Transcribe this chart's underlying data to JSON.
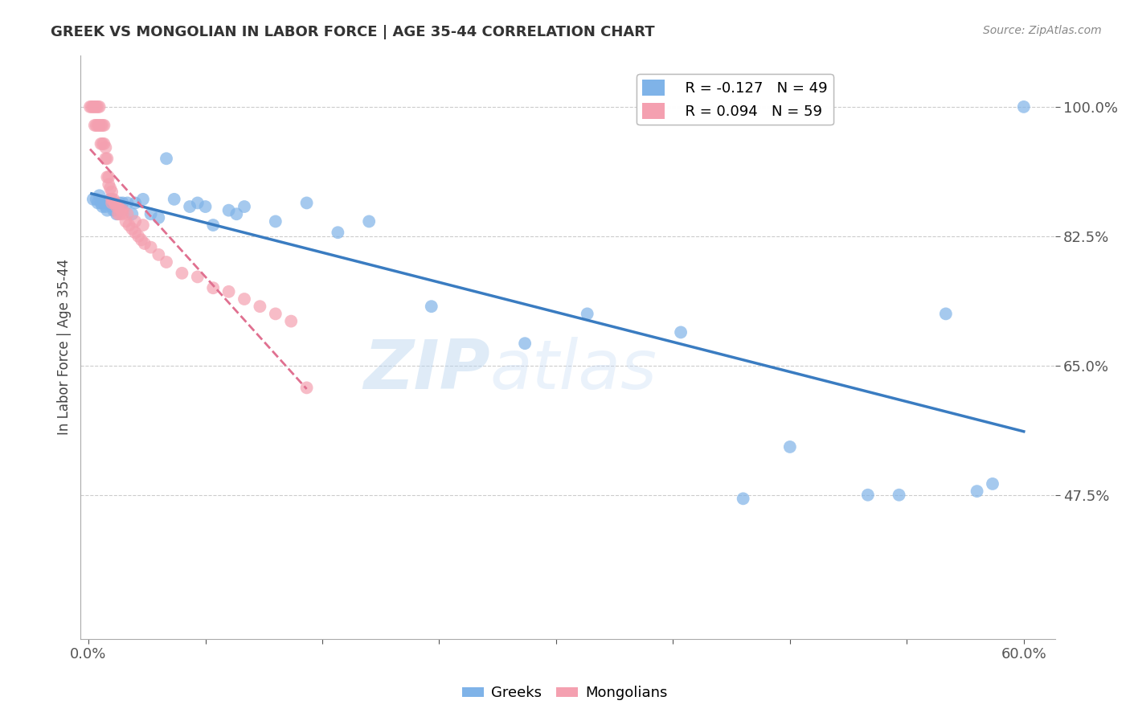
{
  "title": "GREEK VS MONGOLIAN IN LABOR FORCE | AGE 35-44 CORRELATION CHART",
  "source": "Source: ZipAtlas.com",
  "ylabel": "In Labor Force | Age 35-44",
  "xlim": [
    -0.005,
    0.62
  ],
  "ylim": [
    0.28,
    1.07
  ],
  "yticks": [
    0.475,
    0.65,
    0.825,
    1.0
  ],
  "ytick_labels": [
    "47.5%",
    "65.0%",
    "82.5%",
    "100.0%"
  ],
  "xticks": [
    0.0,
    0.075,
    0.15,
    0.225,
    0.3,
    0.375,
    0.45,
    0.525,
    0.6
  ],
  "xtick_labels_show": [
    true,
    false,
    false,
    false,
    false,
    false,
    false,
    false,
    true
  ],
  "xtick_labels": [
    "0.0%",
    "",
    "",
    "",
    "",
    "",
    "",
    "",
    "60.0%"
  ],
  "greek_color": "#7fb3e8",
  "mongolian_color": "#f4a0b0",
  "trendline_greek_color": "#3a7cc1",
  "trendline_mongolian_color": "#e07090",
  "watermark_zip": "ZIP",
  "watermark_atlas": "atlas",
  "legend_greek_R": "R = -0.127",
  "legend_greek_N": "N = 49",
  "legend_mongolian_R": "R = 0.094",
  "legend_mongolian_N": "N = 59",
  "greeks_x": [
    0.003,
    0.005,
    0.006,
    0.007,
    0.008,
    0.009,
    0.01,
    0.011,
    0.012,
    0.013,
    0.014,
    0.015,
    0.016,
    0.017,
    0.018,
    0.019,
    0.02,
    0.022,
    0.025,
    0.028,
    0.03,
    0.035,
    0.04,
    0.045,
    0.05,
    0.055,
    0.065,
    0.07,
    0.075,
    0.08,
    0.09,
    0.095,
    0.1,
    0.12,
    0.14,
    0.16,
    0.18,
    0.22,
    0.28,
    0.32,
    0.38,
    0.42,
    0.45,
    0.5,
    0.52,
    0.55,
    0.57,
    0.58,
    0.6
  ],
  "greeks_y": [
    0.875,
    0.875,
    0.87,
    0.88,
    0.87,
    0.865,
    0.87,
    0.865,
    0.86,
    0.87,
    0.875,
    0.865,
    0.86,
    0.86,
    0.855,
    0.86,
    0.87,
    0.87,
    0.87,
    0.855,
    0.87,
    0.875,
    0.855,
    0.85,
    0.93,
    0.875,
    0.865,
    0.87,
    0.865,
    0.84,
    0.86,
    0.855,
    0.865,
    0.845,
    0.87,
    0.83,
    0.845,
    0.73,
    0.68,
    0.72,
    0.695,
    0.47,
    0.54,
    0.475,
    0.475,
    0.72,
    0.48,
    0.49,
    1.0
  ],
  "mongolians_x": [
    0.001,
    0.002,
    0.003,
    0.004,
    0.004,
    0.005,
    0.005,
    0.006,
    0.006,
    0.007,
    0.007,
    0.008,
    0.008,
    0.009,
    0.009,
    0.01,
    0.01,
    0.011,
    0.011,
    0.012,
    0.012,
    0.013,
    0.013,
    0.014,
    0.015,
    0.015,
    0.016,
    0.017,
    0.018,
    0.019,
    0.02,
    0.021,
    0.022,
    0.024,
    0.026,
    0.028,
    0.03,
    0.032,
    0.034,
    0.036,
    0.04,
    0.045,
    0.05,
    0.06,
    0.07,
    0.08,
    0.09,
    0.1,
    0.11,
    0.12,
    0.13,
    0.015,
    0.017,
    0.019,
    0.022,
    0.025,
    0.03,
    0.035,
    0.14
  ],
  "mongolians_y": [
    1.0,
    1.0,
    1.0,
    1.0,
    0.975,
    1.0,
    0.975,
    1.0,
    0.975,
    1.0,
    0.975,
    0.975,
    0.95,
    0.975,
    0.95,
    0.975,
    0.95,
    0.945,
    0.93,
    0.93,
    0.905,
    0.905,
    0.895,
    0.89,
    0.885,
    0.875,
    0.875,
    0.87,
    0.865,
    0.855,
    0.855,
    0.86,
    0.855,
    0.845,
    0.84,
    0.835,
    0.83,
    0.825,
    0.82,
    0.815,
    0.81,
    0.8,
    0.79,
    0.775,
    0.77,
    0.755,
    0.75,
    0.74,
    0.73,
    0.72,
    0.71,
    0.87,
    0.87,
    0.865,
    0.86,
    0.855,
    0.845,
    0.84,
    0.62
  ]
}
